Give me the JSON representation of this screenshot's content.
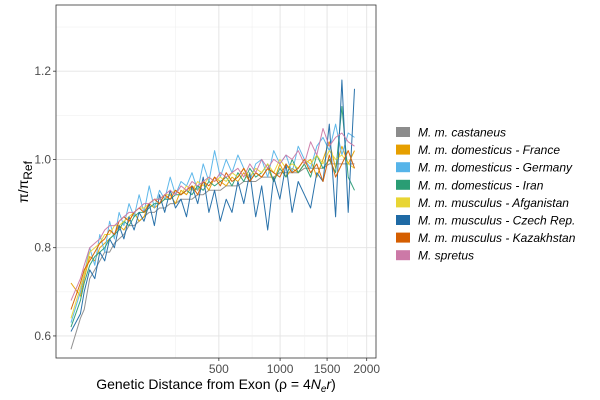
{
  "chart_data": {
    "type": "line",
    "xlabel": "Genetic Distance from Exon (ρ = 4N_e r)",
    "xlabel_parts": {
      "prefix": "Genetic Distance from Exon (ρ = 4",
      "N": "N",
      "sub_e": "e",
      "r": "r",
      "suffix": ")"
    },
    "ylabel": "π/π_Ref",
    "ylabel_parts": {
      "pi": "π",
      "ref_pi": "π",
      "sub": "Ref"
    },
    "x_scale": "sqrt",
    "xlim": [
      0,
      2100
    ],
    "ylim": [
      0.55,
      1.35
    ],
    "x_ticks": [
      500,
      1000,
      1500,
      2000
    ],
    "x_tick_labels": [
      "500",
      "1000",
      "1500",
      "2000"
    ],
    "y_ticks": [
      0.6,
      0.8,
      1.0,
      1.2
    ],
    "y_tick_labels": [
      "0.6",
      "0.8",
      "1.0",
      "1.2"
    ],
    "grid": true,
    "legend_position": "right",
    "x_points": [
      0,
      2,
      4,
      8,
      13,
      19,
      26,
      34,
      43,
      53,
      64,
      77,
      91,
      106,
      122,
      140,
      159,
      179,
      201,
      225,
      250,
      277,
      305,
      335,
      367,
      400,
      435,
      472,
      510,
      551,
      593,
      637,
      683,
      731,
      780,
      832,
      885,
      940,
      998,
      1057,
      1118,
      1181,
      1246,
      1313,
      1382,
      1453,
      1526,
      1601,
      1678,
      1757,
      1838
    ],
    "series": [
      {
        "name": "M. m. castaneus",
        "color": "#8c8c8c",
        "values": [
          0.57,
          0.64,
          0.66,
          0.73,
          0.75,
          0.77,
          0.79,
          0.79,
          0.81,
          0.82,
          0.83,
          0.85,
          0.85,
          0.86,
          0.87,
          0.88,
          0.88,
          0.89,
          0.89,
          0.9,
          0.9,
          0.91,
          0.91,
          0.91,
          0.92,
          0.92,
          0.93,
          0.93,
          0.93,
          0.94,
          0.94,
          0.94,
          0.95,
          0.95,
          0.95,
          0.96,
          0.96,
          0.96,
          0.97,
          0.97,
          0.97,
          0.97,
          0.98,
          0.98,
          0.98,
          0.98,
          0.99,
          0.99,
          0.99,
          0.99,
          0.99
        ]
      },
      {
        "name": "M. m. domesticus - France",
        "color": "#e69f00",
        "values": [
          0.72,
          0.69,
          0.73,
          0.78,
          0.77,
          0.8,
          0.81,
          0.82,
          0.83,
          0.85,
          0.84,
          0.86,
          0.88,
          0.86,
          0.87,
          0.9,
          0.89,
          0.9,
          0.91,
          0.92,
          0.9,
          0.93,
          0.92,
          0.94,
          0.93,
          0.95,
          0.93,
          0.96,
          0.95,
          0.94,
          0.96,
          0.95,
          0.97,
          0.95,
          0.97,
          0.96,
          0.98,
          0.95,
          0.99,
          0.96,
          0.98,
          0.97,
          0.99,
          1.0,
          0.96,
          1.0,
          1.04,
          0.98,
          1.03,
          0.99,
          1.02
        ]
      },
      {
        "name": "M. m. domesticus - Germany",
        "color": "#56b4e9",
        "values": [
          0.63,
          0.7,
          0.74,
          0.8,
          0.76,
          0.83,
          0.79,
          0.86,
          0.82,
          0.88,
          0.85,
          0.9,
          0.87,
          0.92,
          0.88,
          0.94,
          0.89,
          0.93,
          0.91,
          0.96,
          0.92,
          0.95,
          0.94,
          0.97,
          0.93,
          0.99,
          0.95,
          1.02,
          0.96,
          1.0,
          0.97,
          1.01,
          0.98,
          0.95,
          0.99,
          1.0,
          0.96,
          1.02,
          0.99,
          1.01,
          0.97,
          1.03,
          1.0,
          0.98,
          1.03,
          1.05,
          1.02,
          1.08,
          1.01,
          1.06,
          1.05
        ]
      },
      {
        "name": "M. m. domesticus - Iran",
        "color": "#2a9d74",
        "values": [
          0.62,
          0.68,
          0.72,
          0.76,
          0.78,
          0.79,
          0.8,
          0.82,
          0.83,
          0.84,
          0.86,
          0.85,
          0.87,
          0.88,
          0.88,
          0.89,
          0.9,
          0.9,
          0.91,
          0.91,
          0.92,
          0.92,
          0.93,
          0.92,
          0.94,
          0.93,
          0.95,
          0.94,
          0.95,
          0.96,
          0.94,
          0.97,
          0.95,
          0.98,
          0.96,
          0.97,
          0.99,
          0.95,
          0.98,
          0.96,
          1.0,
          0.97,
          0.99,
          0.96,
          1.01,
          0.98,
          1.0,
          0.97,
          1.12,
          0.96,
          0.93
        ]
      },
      {
        "name": "M. m. musculus - Afganistan",
        "color": "#e8d534",
        "values": [
          0.64,
          0.71,
          0.74,
          0.79,
          0.8,
          0.81,
          0.83,
          0.83,
          0.85,
          0.85,
          0.86,
          0.87,
          0.88,
          0.89,
          0.89,
          0.9,
          0.91,
          0.91,
          0.92,
          0.92,
          0.93,
          0.92,
          0.94,
          0.93,
          0.95,
          0.94,
          0.96,
          0.95,
          0.96,
          0.95,
          0.97,
          0.96,
          0.98,
          0.96,
          0.98,
          0.97,
          0.99,
          0.97,
          1.0,
          0.98,
          0.99,
          0.98,
          1.0,
          0.99,
          1.01,
          0.99,
          1.02,
          1.0,
          1.01,
          0.99,
          0.98
        ]
      },
      {
        "name": "M. m. musculus - Czech Rep.",
        "color": "#1f6aa5",
        "values": [
          0.61,
          0.65,
          0.7,
          0.75,
          0.73,
          0.79,
          0.77,
          0.82,
          0.8,
          0.85,
          0.82,
          0.87,
          0.84,
          0.88,
          0.86,
          0.9,
          0.85,
          0.92,
          0.88,
          0.93,
          0.89,
          0.91,
          0.87,
          0.94,
          0.9,
          0.96,
          0.88,
          0.93,
          0.86,
          0.91,
          0.88,
          0.95,
          0.9,
          0.97,
          0.87,
          0.94,
          0.84,
          0.96,
          0.91,
          0.99,
          0.88,
          0.95,
          0.92,
          0.89,
          0.97,
          0.95,
          1.08,
          0.87,
          1.18,
          0.88,
          1.16
        ]
      },
      {
        "name": "M. m. musculus - Kazakhstan",
        "color": "#d55e00",
        "values": [
          0.66,
          0.72,
          0.75,
          0.77,
          0.79,
          0.81,
          0.82,
          0.84,
          0.83,
          0.86,
          0.87,
          0.86,
          0.88,
          0.89,
          0.88,
          0.9,
          0.91,
          0.9,
          0.92,
          0.91,
          0.93,
          0.92,
          0.93,
          0.94,
          0.92,
          0.95,
          0.94,
          0.96,
          0.94,
          0.97,
          0.95,
          0.96,
          0.98,
          0.95,
          0.97,
          0.96,
          0.98,
          0.97,
          0.96,
          0.99,
          0.97,
          0.98,
          1.0,
          0.97,
          0.99,
          0.95,
          1.01,
          0.96,
          0.99,
          1.02,
          0.98
        ]
      },
      {
        "name": "M. spretus",
        "color": "#cc79a7",
        "values": [
          0.68,
          0.73,
          0.76,
          0.8,
          0.81,
          0.82,
          0.84,
          0.85,
          0.85,
          0.86,
          0.87,
          0.88,
          0.88,
          0.89,
          0.9,
          0.9,
          0.91,
          0.91,
          0.92,
          0.93,
          0.92,
          0.94,
          0.93,
          0.95,
          0.94,
          0.95,
          0.96,
          0.95,
          0.97,
          0.96,
          0.97,
          0.98,
          0.96,
          0.99,
          0.97,
          1.0,
          0.98,
          1.0,
          0.99,
          1.01,
          1.0,
          1.02,
          0.99,
          1.04,
          1.01,
          1.07,
          1.03,
          1.05,
          1.06,
          1.04,
          1.03
        ]
      }
    ]
  }
}
